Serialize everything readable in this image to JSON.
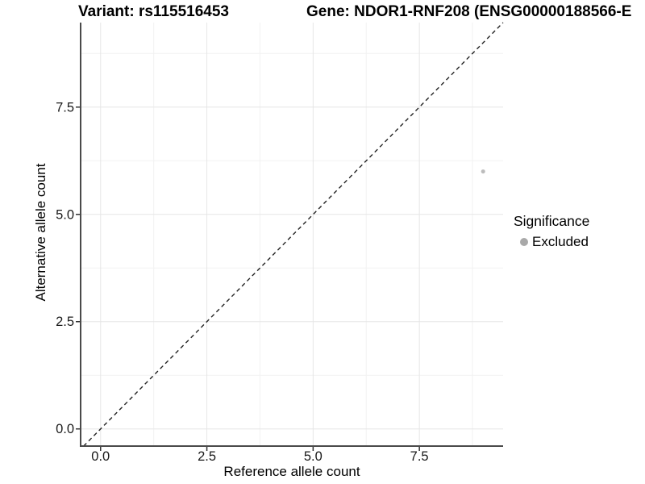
{
  "titles": {
    "variant": "Variant: rs115516453",
    "gene": "Gene: NDOR1-RNF208 (ENSG00000188566-E"
  },
  "chart_data": {
    "type": "scatter",
    "title": "Variant: rs115516453   Gene: NDOR1-RNF208 (ENSG00000188566-E",
    "xlabel": "Reference allele count",
    "ylabel": "Alternative allele count",
    "xlim": [
      -0.47,
      9.47
    ],
    "ylim": [
      -0.4,
      9.47
    ],
    "xticks": [
      "0.0",
      "2.5",
      "5.0",
      "7.5"
    ],
    "yticks": [
      "0.0",
      "2.5",
      "5.0",
      "7.5"
    ],
    "xtick_values": [
      0,
      2.5,
      5,
      7.5
    ],
    "ytick_values": [
      0,
      2.5,
      5,
      7.5
    ],
    "minor_tick_values": [
      1.25,
      3.75,
      6.25,
      8.75
    ],
    "grid": "major+minor",
    "identity_line": {
      "equation": "y = x",
      "style": "dashed",
      "color": "#222222"
    },
    "series": [
      {
        "name": "Excluded",
        "color": "#bcbcbc",
        "points": [
          {
            "x": 9,
            "y": 6
          }
        ]
      }
    ],
    "legend": {
      "title": "Significance",
      "position": "right",
      "items": [
        {
          "label": "Excluded",
          "color": "#a9a9a9"
        }
      ]
    },
    "colors": {
      "major_grid": "#e6e6e6",
      "minor_grid": "#f2f2f2",
      "axis_line": "#4a4a4a",
      "tick_mark": "#333333",
      "tick_label": "#1a1a1a"
    }
  }
}
